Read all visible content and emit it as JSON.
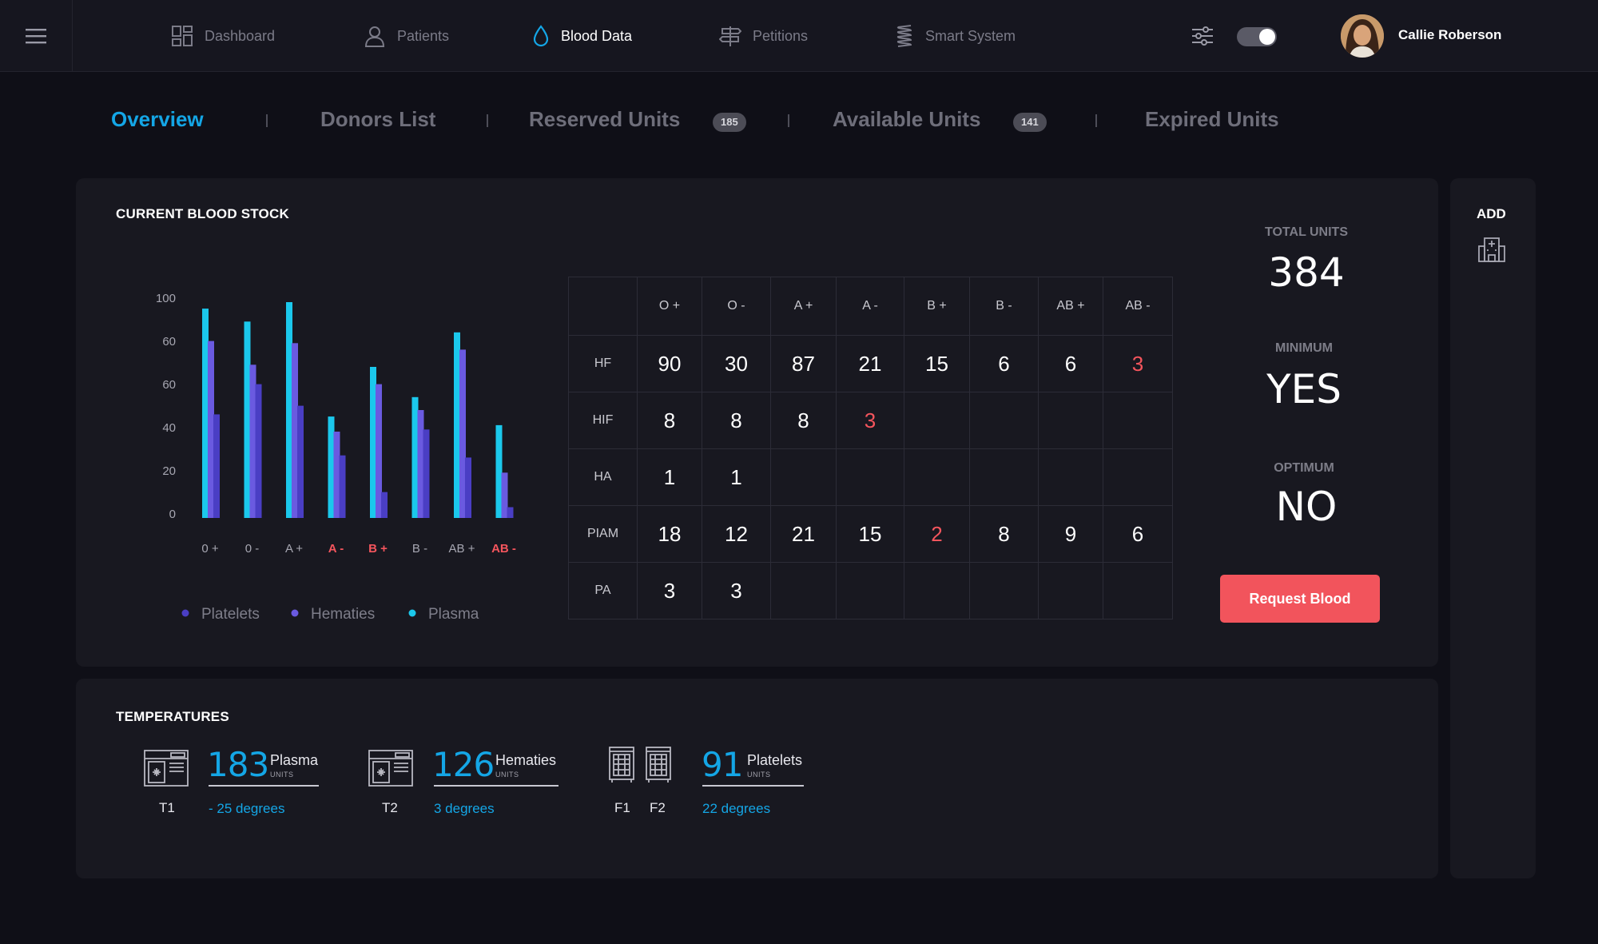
{
  "nav": {
    "items": [
      {
        "label": "Dashboard",
        "icon": "grid-icon",
        "active": false
      },
      {
        "label": "Patients",
        "icon": "user-icon",
        "active": false
      },
      {
        "label": "Blood Data",
        "icon": "blood-drop-icon",
        "active": true
      },
      {
        "label": "Petitions",
        "icon": "signpost-icon",
        "active": false
      },
      {
        "label": "Smart System",
        "icon": "coil-icon",
        "active": false
      }
    ],
    "user_name": "Callie Roberson"
  },
  "tabs": [
    {
      "label": "Overview",
      "active": true
    },
    {
      "label": "Donors List",
      "active": false
    },
    {
      "label": "Reserved Units",
      "badge": "185",
      "active": false
    },
    {
      "label": "Available Units",
      "badge": "141",
      "active": false
    },
    {
      "label": "Expired Units",
      "active": false
    }
  ],
  "stock": {
    "title": "CURRENT BLOOD STOCK",
    "legend": [
      "Platelets",
      "Hematies",
      "Plasma"
    ]
  },
  "chart_data": {
    "type": "bar",
    "categories": [
      "0 +",
      "0 -",
      "A +",
      "A -",
      "B +",
      "B -",
      "AB +",
      "AB -"
    ],
    "category_alert": [
      false,
      false,
      false,
      true,
      true,
      false,
      false,
      true
    ],
    "y_ticks": [
      "100",
      "60",
      "60",
      "40",
      "20",
      "0"
    ],
    "ylim": [
      0,
      100
    ],
    "series": [
      {
        "name": "Plasma",
        "color": "#1bc8ec",
        "values": [
          97,
          91,
          100,
          47,
          70,
          56,
          86,
          43
        ]
      },
      {
        "name": "Hematies",
        "color": "#6a5ae0",
        "values": [
          82,
          71,
          81,
          40,
          62,
          50,
          78,
          21
        ]
      },
      {
        "name": "Platelets",
        "color": "#4a3ec4",
        "values": [
          48,
          62,
          52,
          29,
          12,
          41,
          28,
          5
        ]
      }
    ]
  },
  "table": {
    "columns": [
      "O +",
      "O -",
      "A +",
      "A -",
      "B +",
      "B -",
      "AB +",
      "AB -"
    ],
    "rows": [
      {
        "label": "HF",
        "cells": [
          "90",
          "30",
          "87",
          "21",
          "15",
          "6",
          "6",
          "3"
        ],
        "alert": [
          false,
          false,
          false,
          false,
          false,
          false,
          false,
          true
        ]
      },
      {
        "label": "HIF",
        "cells": [
          "8",
          "8",
          "8",
          "3",
          "",
          "",
          "",
          ""
        ],
        "alert": [
          false,
          false,
          false,
          true,
          false,
          false,
          false,
          false
        ]
      },
      {
        "label": "HA",
        "cells": [
          "1",
          "1",
          "",
          "",
          "",
          "",
          "",
          ""
        ],
        "alert": [
          false,
          false,
          false,
          false,
          false,
          false,
          false,
          false
        ]
      },
      {
        "label": "PIAM",
        "cells": [
          "18",
          "12",
          "21",
          "15",
          "2",
          "8",
          "9",
          "6"
        ],
        "alert": [
          false,
          false,
          false,
          false,
          true,
          false,
          false,
          false
        ]
      },
      {
        "label": "PA",
        "cells": [
          "3",
          "3",
          "",
          "",
          "",
          "",
          "",
          ""
        ],
        "alert": [
          false,
          false,
          false,
          false,
          false,
          false,
          false,
          false
        ]
      }
    ]
  },
  "summary": {
    "total_label": "TOTAL UNITS",
    "total_value": "384",
    "minimum_label": "MINIMUM",
    "minimum_value": "YES",
    "optimum_label": "OPTIMUM",
    "optimum_value": "NO",
    "request_label": "Request Blood"
  },
  "side": {
    "add_label": "ADD",
    "icon": "hospital-icon"
  },
  "temperatures": {
    "title": "TEMPERATURES",
    "groups": [
      {
        "devices": [
          "T1"
        ],
        "device_icon": "freezer-icon",
        "number": "183",
        "name": "Plasma",
        "units": "UNITS",
        "degrees": "- 25 degrees"
      },
      {
        "devices": [
          "T2"
        ],
        "device_icon": "freezer-icon",
        "number": "126",
        "name": "Hematies",
        "units": "UNITS",
        "degrees": "3 degrees"
      },
      {
        "devices": [
          "F1",
          "F2"
        ],
        "device_icon": "fridge-icon",
        "number": "91",
        "name": "Platelets",
        "units": "UNITS",
        "degrees": "22 degrees"
      }
    ]
  },
  "colors": {
    "accent": "#14a6e6",
    "alert": "#f5555d",
    "background": "#0f0f17",
    "panel": "#181820"
  }
}
